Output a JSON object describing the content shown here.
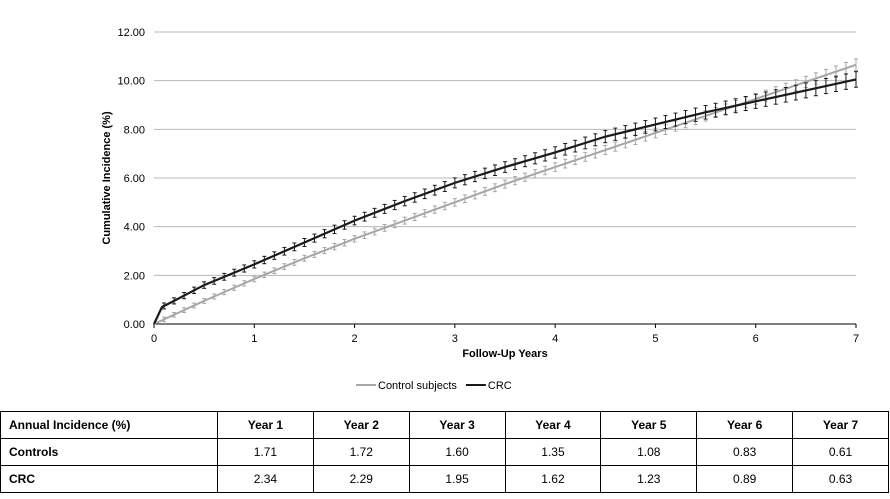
{
  "chart_data": {
    "type": "line",
    "xlabel": "Follow-Up Years",
    "ylabel": "Cumulative Incidence (%)",
    "xlim": [
      0,
      7
    ],
    "ylim": [
      0,
      12
    ],
    "x_ticks": [
      "0",
      "1",
      "2",
      "3",
      "4",
      "5",
      "6",
      "7"
    ],
    "y_ticks": [
      "0.00",
      "2.00",
      "4.00",
      "6.00",
      "8.00",
      "10.00",
      "12.00"
    ],
    "grid": "horizontal",
    "legend_position": "bottom",
    "series": [
      {
        "name": "Control subjects",
        "color": "#a6a6a6",
        "error_bar_halfwidth": 0.15,
        "x": [
          0,
          0.5,
          1,
          1.5,
          2,
          2.5,
          3,
          3.5,
          4,
          4.5,
          5,
          5.5,
          6,
          6.5,
          7
        ],
        "y": [
          0,
          0.95,
          1.85,
          2.7,
          3.5,
          4.25,
          5.0,
          5.75,
          6.45,
          7.15,
          7.85,
          8.55,
          9.25,
          9.95,
          10.65
        ]
      },
      {
        "name": "CRC",
        "color": "#1a1a1a",
        "error_bar_halfwidth": 0.2,
        "x": [
          0,
          0.08,
          0.2,
          0.5,
          1,
          1.5,
          2,
          2.5,
          3,
          3.5,
          4,
          4.5,
          5,
          5.5,
          6,
          6.5,
          7
        ],
        "y": [
          0,
          0.7,
          0.95,
          1.6,
          2.45,
          3.35,
          4.25,
          5.05,
          5.8,
          6.45,
          7.05,
          7.7,
          8.2,
          8.7,
          9.15,
          9.6,
          10.05
        ]
      }
    ]
  },
  "table": {
    "header": [
      "Annual Incidence (%)",
      "Year 1",
      "Year 2",
      "Year 3",
      "Year 4",
      "Year 5",
      "Year 6",
      "Year 7"
    ],
    "rows": [
      {
        "label": "Controls",
        "values": [
          "1.71",
          "1.72",
          "1.60",
          "1.35",
          "1.08",
          "0.83",
          "0.61"
        ]
      },
      {
        "label": "CRC",
        "values": [
          "2.34",
          "2.29",
          "1.95",
          "1.62",
          "1.23",
          "0.89",
          "0.63"
        ]
      }
    ]
  }
}
